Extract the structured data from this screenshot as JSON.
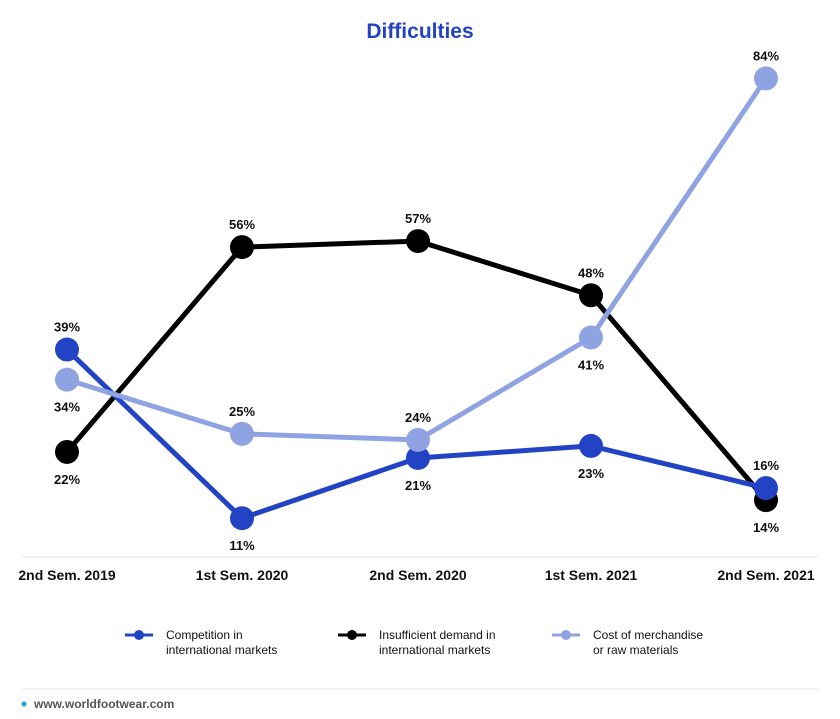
{
  "chart_data": {
    "type": "line",
    "title": "Difficulties",
    "xlabel": "",
    "ylabel": "",
    "categories": [
      "2nd Sem. 2019",
      "1st Sem. 2020",
      "2nd Sem. 2020",
      "1st Sem. 2021",
      "2nd Sem. 2021"
    ],
    "ylim": [
      0,
      90
    ],
    "grid": false,
    "legend_position": "bottom",
    "series": [
      {
        "name": "Competition in international markets",
        "legend_lines": [
          "Competition in",
          "international markets"
        ],
        "color": "#2244c4",
        "values": [
          39,
          11,
          21,
          23,
          16
        ],
        "labels": [
          "39%",
          "11%",
          "21%",
          "23%",
          "16%"
        ]
      },
      {
        "name": "Insufficient demand in international markets",
        "legend_lines": [
          "Insufficient demand in",
          "international markets"
        ],
        "color": "#000000",
        "values": [
          22,
          56,
          57,
          48,
          14
        ],
        "labels": [
          "22%",
          "56%",
          "57%",
          "48%",
          "14%"
        ]
      },
      {
        "name": "Cost of merchandise or raw materials",
        "legend_lines": [
          "Cost of merchandise",
          "or raw materials"
        ],
        "color": "#8fa3e3",
        "values": [
          34,
          25,
          24,
          41,
          84
        ],
        "labels": [
          "34%",
          "25%",
          "24%",
          "41%",
          "84%"
        ]
      }
    ]
  },
  "footer": {
    "text": "www.worldfootwear.com",
    "dot_color": "#1a9fe0"
  }
}
